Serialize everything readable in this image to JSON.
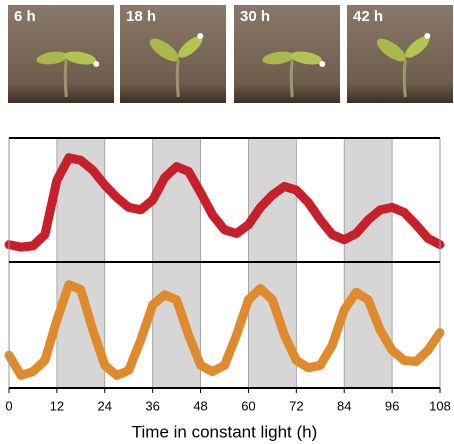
{
  "photos": [
    {
      "label": "6 h"
    },
    {
      "label": "18 h"
    },
    {
      "label": "30 h"
    },
    {
      "label": "42 h"
    }
  ],
  "chart_data": {
    "type": "line",
    "layout": "stacked",
    "xlabel": "Time in constant light (h)",
    "x": [
      0,
      3,
      6,
      9,
      12,
      15,
      18,
      21,
      24,
      27,
      30,
      33,
      36,
      39,
      42,
      45,
      48,
      51,
      54,
      57,
      60,
      63,
      66,
      69,
      72,
      75,
      78,
      81,
      84,
      87,
      90,
      93,
      96,
      99,
      102,
      105,
      108
    ],
    "xlim": [
      0,
      108
    ],
    "xticks": [
      0,
      12,
      24,
      36,
      48,
      60,
      72,
      84,
      96,
      108
    ],
    "ylim": [
      0,
      1
    ],
    "grid": true,
    "shaded_intervals": [
      [
        12,
        24
      ],
      [
        36,
        48
      ],
      [
        60,
        72
      ],
      [
        84,
        96
      ]
    ],
    "series": [
      {
        "color": "#c8202a",
        "values": [
          0.14,
          0.12,
          0.13,
          0.22,
          0.66,
          0.84,
          0.82,
          0.74,
          0.62,
          0.52,
          0.44,
          0.42,
          0.5,
          0.68,
          0.77,
          0.73,
          0.56,
          0.38,
          0.26,
          0.23,
          0.3,
          0.44,
          0.54,
          0.61,
          0.58,
          0.48,
          0.34,
          0.22,
          0.18,
          0.23,
          0.34,
          0.42,
          0.44,
          0.4,
          0.3,
          0.19,
          0.14
        ]
      },
      {
        "color": "#e08a2e",
        "values": [
          0.26,
          0.1,
          0.13,
          0.22,
          0.54,
          0.82,
          0.78,
          0.46,
          0.18,
          0.1,
          0.14,
          0.38,
          0.66,
          0.74,
          0.7,
          0.42,
          0.18,
          0.13,
          0.18,
          0.42,
          0.7,
          0.79,
          0.7,
          0.42,
          0.22,
          0.16,
          0.18,
          0.34,
          0.62,
          0.76,
          0.7,
          0.46,
          0.3,
          0.22,
          0.21,
          0.3,
          0.44
        ]
      }
    ]
  }
}
